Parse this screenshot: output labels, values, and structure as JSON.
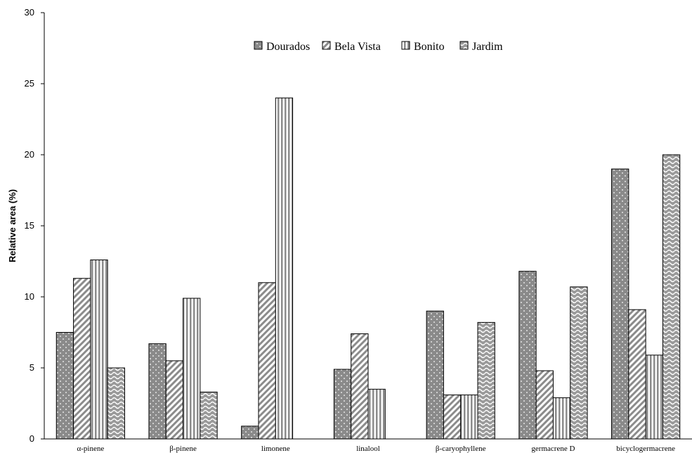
{
  "chart_data": {
    "type": "bar",
    "title": "",
    "xlabel": "",
    "ylabel": "Relative area (%)",
    "ylim": [
      0,
      30
    ],
    "yticks": [
      0,
      5,
      10,
      15,
      20,
      25,
      30
    ],
    "grid": false,
    "legend_position": "top",
    "categories": [
      "α-pinene",
      "β-pinene",
      "limonene",
      "linalool",
      "β-caryophyllene",
      "germacrene D",
      "bicyclogermacrene"
    ],
    "series": [
      {
        "name": "Dourados",
        "pattern": "dots",
        "color": "#8a8a8a",
        "values": [
          7.5,
          6.7,
          0.9,
          4.9,
          9.0,
          11.8,
          19.0
        ]
      },
      {
        "name": "Bela Vista",
        "pattern": "diagonal",
        "color": "#9a9a9a",
        "values": [
          11.3,
          5.5,
          11.0,
          7.4,
          3.1,
          4.8,
          9.1
        ]
      },
      {
        "name": "Bonito",
        "pattern": "vertical",
        "color": "#9a9a9a",
        "values": [
          12.6,
          9.9,
          24.0,
          3.5,
          3.1,
          2.9,
          5.9
        ]
      },
      {
        "name": "Jardim",
        "pattern": "wave",
        "color": "#9a9a9a",
        "values": [
          5.0,
          3.3,
          0,
          0,
          8.2,
          10.7,
          20.0
        ]
      }
    ]
  }
}
